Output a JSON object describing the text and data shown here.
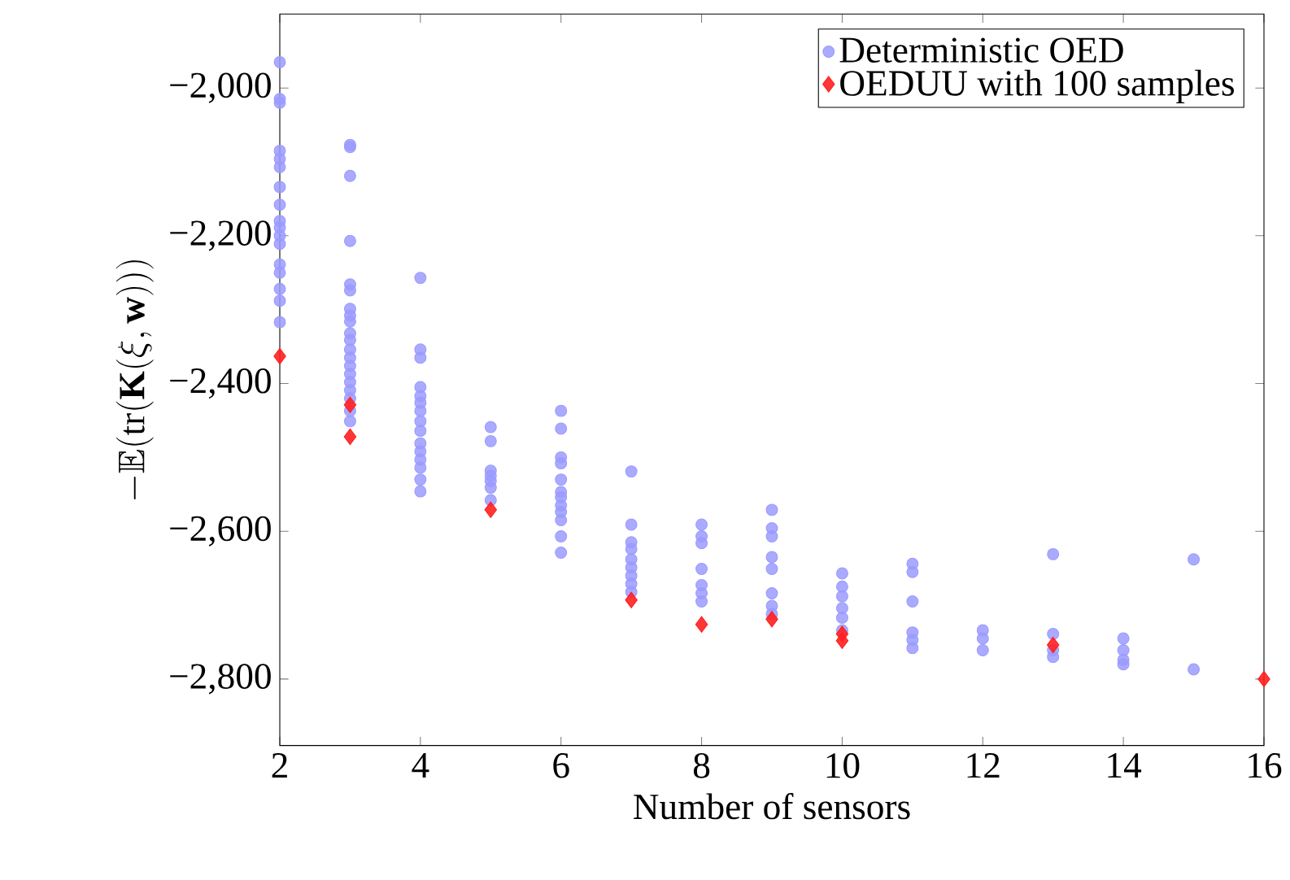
{
  "chart_data": {
    "type": "scatter",
    "xlabel": "Number of sensors",
    "ylabel": "-\\mathbb{E}(\\mathrm{tr}(\\mathbf{K}(\\xi,\\mathbf{w})))",
    "xlim": [
      2,
      16
    ],
    "ylim": [
      -2890,
      -1900
    ],
    "xticks": [
      2,
      4,
      6,
      8,
      10,
      12,
      14,
      16
    ],
    "yticks": [
      {
        "value": -2800,
        "label": "−2,800"
      },
      {
        "value": -2600,
        "label": "−2,600"
      },
      {
        "value": -2400,
        "label": "−2,400"
      },
      {
        "value": -2200,
        "label": "−2,200"
      },
      {
        "value": -2000,
        "label": "−2,000"
      }
    ],
    "legend": "top right",
    "grid": false,
    "series": [
      {
        "name": "Deterministic OED",
        "color": "#9b9bff",
        "marker": "circle",
        "x": [
          2,
          2,
          2,
          2,
          2,
          2,
          2,
          2,
          2,
          2,
          2,
          2,
          2,
          2,
          2,
          2,
          2,
          3,
          3,
          3,
          3,
          3,
          3,
          3,
          3,
          3,
          3,
          3,
          3,
          3,
          3,
          3,
          3,
          3,
          3,
          3,
          3,
          4,
          4,
          4,
          4,
          4,
          4,
          4,
          4,
          4,
          4,
          4,
          4,
          4,
          4,
          4,
          5,
          5,
          5,
          5,
          5,
          5,
          5,
          6,
          6,
          6,
          6,
          6,
          6,
          6,
          6,
          6,
          6,
          6,
          6,
          7,
          7,
          7,
          7,
          7,
          7,
          7,
          7,
          7,
          8,
          8,
          8,
          8,
          8,
          8,
          8,
          9,
          9,
          9,
          9,
          9,
          9,
          9,
          9,
          10,
          10,
          10,
          10,
          10,
          10,
          11,
          11,
          11,
          11,
          11,
          11,
          12,
          12,
          12,
          13,
          13,
          13,
          13,
          14,
          14,
          14,
          14,
          15,
          15
        ],
        "values": [
          -1965,
          -2015,
          -2020,
          -2085,
          -2096,
          -2107,
          -2134,
          -2158,
          -2180,
          -2189,
          -2200,
          -2211,
          -2239,
          -2250,
          -2272,
          -2288,
          -2317,
          -2077,
          -2080,
          -2119,
          -2207,
          -2266,
          -2274,
          -2299,
          -2308,
          -2316,
          -2332,
          -2341,
          -2354,
          -2365,
          -2376,
          -2387,
          -2398,
          -2409,
          -2420,
          -2437,
          -2451,
          -2257,
          -2354,
          -2365,
          -2405,
          -2417,
          -2426,
          -2437,
          -2451,
          -2464,
          -2481,
          -2492,
          -2503,
          -2514,
          -2530,
          -2546,
          -2459,
          -2478,
          -2518,
          -2525,
          -2532,
          -2541,
          -2558,
          -2437,
          -2461,
          -2500,
          -2508,
          -2530,
          -2547,
          -2554,
          -2565,
          -2574,
          -2585,
          -2607,
          -2629,
          -2519,
          -2591,
          -2615,
          -2624,
          -2638,
          -2649,
          -2660,
          -2671,
          -2682,
          -2591,
          -2607,
          -2616,
          -2651,
          -2673,
          -2684,
          -2695,
          -2571,
          -2596,
          -2607,
          -2635,
          -2651,
          -2684,
          -2701,
          -2712,
          -2657,
          -2675,
          -2688,
          -2704,
          -2717,
          -2734,
          -2644,
          -2655,
          -2695,
          -2737,
          -2747,
          -2758,
          -2734,
          -2745,
          -2761,
          -2631,
          -2739,
          -2761,
          -2770,
          -2745,
          -2761,
          -2774,
          -2780,
          -2638,
          -2787
        ]
      },
      {
        "name": "OEDUU with 100 samples",
        "color": "#ff2020",
        "marker": "diamond",
        "x": [
          2,
          3,
          3,
          5,
          7,
          8,
          9,
          10,
          10,
          13,
          16
        ],
        "values": [
          -2363,
          -2429,
          -2472,
          -2571,
          -2693,
          -2726,
          -2719,
          -2739,
          -2748,
          -2754,
          -2800
        ]
      }
    ]
  }
}
